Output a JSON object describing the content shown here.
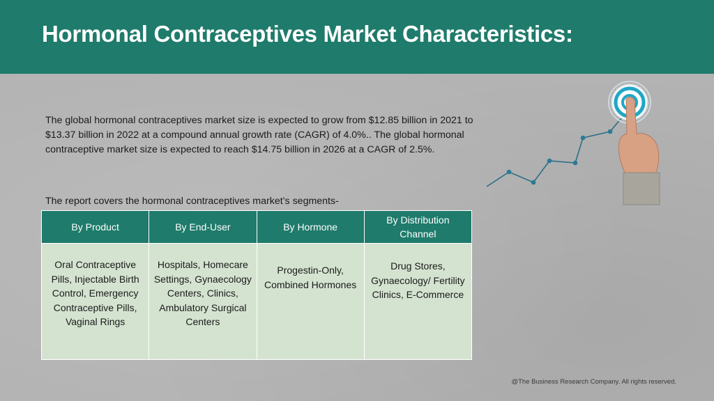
{
  "title": "Hormonal Contraceptives Market Characteristics:",
  "intro_paragraphs": [
    "The global hormonal contraceptives market size is expected to grow from $12.85 billion in 2021 to $13.37 billion in 2022 at a compound annual growth rate (CAGR) of 4.0%.. The global hormonal contraceptive market size is expected to reach $14.75 billion in 2026 at a CAGR of 2.5%."
  ],
  "segments_intro": "The report covers the hormonal contraceptives market’s segments-",
  "table": {
    "headers": [
      "By Product",
      "By End-User",
      "By Hormone",
      "By Distribution Channel"
    ],
    "cells": [
      "Oral Contraceptive Pills, Injectable Birth Control, Emergency Contraceptive Pills, Vaginal Rings",
      "Hospitals, Homecare Settings, Gynaecology Centers, Clinics, Ambulatory Surgical Centers",
      "Progestin-Only, Combined Hormones",
      "Drug Stores, Gynaecology/ Fertility Clinics, E-Commerce"
    ]
  },
  "footer": "@The Business Research Company. All rights reserved.",
  "colors": {
    "header_bg": "#1f7b6b",
    "table_body_bg": "#d4e3d0",
    "slide_bg": "#b3b3b3",
    "target_ring": "#1fa7c7"
  },
  "icons": [
    "trend-line-icon",
    "target-icon",
    "pointing-hand-icon"
  ]
}
